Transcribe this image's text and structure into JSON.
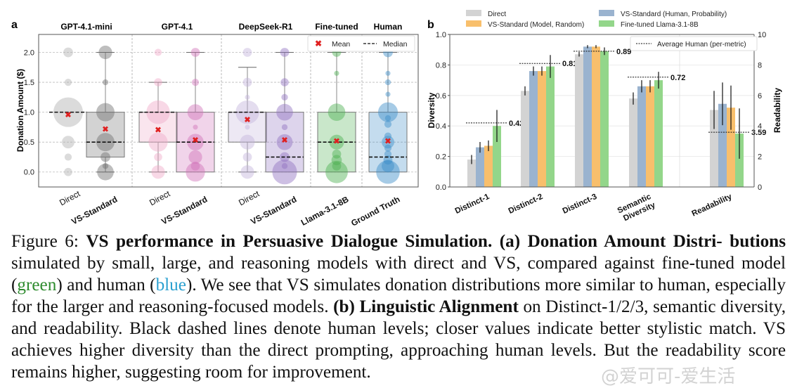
{
  "figure": {
    "caption_parts": {
      "label": "Figure 6: ",
      "title": "VS performance in Persuasive Dialogue Simulation.",
      "a_head": " (a) Donation Amount Distri- butions",
      "a_body_1": " simulated by small, large, and reasoning models with direct and VS, compared against fine-tuned model (",
      "green_word": "green",
      "a_body_2": ") and human (",
      "blue_word": "blue",
      "a_body_3": "). We see that VS simulates donation distributions more similar to human, especially for the larger and reasoning-focused models. ",
      "b_head": "(b) Linguistic Alignment",
      "b_body": " on Distinct-1/2/3, semantic diversity, and readability. Black dashed lines denote human levels; closer values indicate better stylistic match. VS achieves higher diversity than the direct prompting, approaching human levels. But the readability score remains higher, suggesting room for improvement."
    },
    "watermark": "@爱可可-爱生活"
  },
  "chart_data": [
    {
      "panel": "a",
      "type": "box",
      "ylabel": "Donation Amount ($)",
      "ylim": [
        -0.25,
        2.3
      ],
      "yticks": [
        0.0,
        0.5,
        1.0,
        1.5,
        2.0
      ],
      "ytick_labels": [
        "0.0",
        "0.5",
        "1.0",
        "1.5",
        "2.0"
      ],
      "grid": true,
      "legend": {
        "position": "top-right",
        "mean_label": "Mean",
        "median_label": "Median"
      },
      "groups": [
        {
          "title": "GPT-4.1-mini",
          "categories": [
            0,
            1
          ]
        },
        {
          "title": "GPT-4.1",
          "categories": [
            2,
            3
          ]
        },
        {
          "title": "DeepSeek-R1",
          "categories": [
            4,
            5
          ]
        },
        {
          "title": "Fine-tuned",
          "categories": [
            6
          ]
        },
        {
          "title": "Human",
          "categories": [
            7
          ]
        }
      ],
      "categories": [
        {
          "label": "Direct",
          "bold": false,
          "color": "#b0b0b0",
          "q1": 1.0,
          "q3": 1.0,
          "median": 1.0,
          "mean": 0.96,
          "whisker_low": 1.0,
          "whisker_high": 1.0,
          "points": [
            {
              "y": 2.0,
              "w": 0.05
            },
            {
              "y": 1.5,
              "w": 0.02
            },
            {
              "y": 1.0,
              "w": 0.75
            },
            {
              "y": 0.5,
              "w": 0.1
            },
            {
              "y": 0.25,
              "w": 0.02
            },
            {
              "y": 0.0,
              "w": 0.03
            }
          ]
        },
        {
          "label": "VS-Standard",
          "bold": true,
          "color": "#6e6e6e",
          "q1": 0.25,
          "q3": 1.0,
          "median": 0.5,
          "mean": 0.72,
          "whisker_low": 0.0,
          "whisker_high": 2.0,
          "points": [
            {
              "y": 2.0,
              "w": 0.12
            },
            {
              "y": 1.5,
              "w": 0.01
            },
            {
              "y": 1.0,
              "w": 0.25
            },
            {
              "y": 0.5,
              "w": 0.25
            },
            {
              "y": 0.25,
              "w": 0.05
            },
            {
              "y": 0.1,
              "w": 0.01
            },
            {
              "y": 0.0,
              "w": 0.2
            }
          ]
        },
        {
          "label": "Direct",
          "bold": false,
          "color": "#f0a8c8",
          "q1": 0.5,
          "q3": 1.0,
          "median": 1.0,
          "mean": 0.71,
          "whisker_low": 0.0,
          "whisker_high": 1.5,
          "points": [
            {
              "y": 2.0,
              "w": 0.02
            },
            {
              "y": 1.5,
              "w": 0.03
            },
            {
              "y": 1.0,
              "w": 0.45
            },
            {
              "y": 0.5,
              "w": 0.28
            },
            {
              "y": 0.25,
              "w": 0.03
            },
            {
              "y": 0.0,
              "w": 0.12
            }
          ]
        },
        {
          "label": "VS-Standard",
          "bold": true,
          "color": "#d070b8",
          "q1": 0.0,
          "q3": 1.0,
          "median": 0.5,
          "mean": 0.54,
          "whisker_low": 0.0,
          "whisker_high": 2.0,
          "points": [
            {
              "y": 2.0,
              "w": 0.04
            },
            {
              "y": 1.5,
              "w": 0.02
            },
            {
              "y": 1.0,
              "w": 0.18
            },
            {
              "y": 0.75,
              "w": 0.005
            },
            {
              "y": 0.5,
              "w": 0.2
            },
            {
              "y": 0.25,
              "w": 0.12
            },
            {
              "y": 0.1,
              "w": 0.04
            },
            {
              "y": 0.0,
              "w": 0.28
            }
          ]
        },
        {
          "label": "Direct",
          "bold": false,
          "color": "#c4b4dc",
          "q1": 0.5,
          "q3": 1.0,
          "median": 1.0,
          "mean": 0.88,
          "whisker_low": 0.0,
          "whisker_high": 1.75,
          "points": [
            {
              "y": 2.0,
              "w": 0.04
            },
            {
              "y": 1.5,
              "w": 0.04
            },
            {
              "y": 1.25,
              "w": 0.005
            },
            {
              "y": 1.0,
              "w": 0.45
            },
            {
              "y": 0.75,
              "w": 0.005
            },
            {
              "y": 0.5,
              "w": 0.15
            },
            {
              "y": 0.25,
              "w": 0.04
            },
            {
              "y": 0.0,
              "w": 0.12
            }
          ]
        },
        {
          "label": "VS-Standard",
          "bold": true,
          "color": "#9070c0",
          "q1": 0.0,
          "q3": 1.0,
          "median": 0.25,
          "mean": 0.54,
          "whisker_low": 0.0,
          "whisker_high": 2.0,
          "points": [
            {
              "y": 2.0,
              "w": 0.04
            },
            {
              "y": 1.5,
              "w": 0.03
            },
            {
              "y": 1.25,
              "w": 0.015
            },
            {
              "y": 1.0,
              "w": 0.2
            },
            {
              "y": 0.75,
              "w": 0.01
            },
            {
              "y": 0.5,
              "w": 0.18
            },
            {
              "y": 0.25,
              "w": 0.05
            },
            {
              "y": 0.1,
              "w": 0.01
            },
            {
              "y": 0.0,
              "w": 0.5
            }
          ]
        },
        {
          "label": "Llama-3.1-8B",
          "bold": true,
          "color": "#4caf50",
          "q1": 0.0,
          "q3": 1.0,
          "median": 0.5,
          "mean": 0.52,
          "whisker_low": 0.0,
          "whisker_high": 2.0,
          "points": [
            {
              "y": 2.0,
              "w": 0.04
            },
            {
              "y": 1.65,
              "w": 0.005
            },
            {
              "y": 1.0,
              "w": 0.22
            },
            {
              "y": 0.5,
              "w": 0.15
            },
            {
              "y": 0.3,
              "w": 0.04
            },
            {
              "y": 0.2,
              "w": 0.06
            },
            {
              "y": 0.1,
              "w": 0.04
            },
            {
              "y": 0.0,
              "w": 0.4
            }
          ]
        },
        {
          "label": "Ground Truth",
          "bold": true,
          "color": "#3a8cc8",
          "q1": 0.0,
          "q3": 1.0,
          "median": 0.25,
          "mean": 0.52,
          "whisker_low": 0.0,
          "whisker_high": 2.0,
          "points": [
            {
              "y": 2.0,
              "w": 0.05
            },
            {
              "y": 1.65,
              "w": 0.005
            },
            {
              "y": 1.5,
              "w": 0.01
            },
            {
              "y": 1.3,
              "w": 0.005
            },
            {
              "y": 1.0,
              "w": 0.3
            },
            {
              "y": 0.9,
              "w": 0.01
            },
            {
              "y": 0.8,
              "w": 0.02
            },
            {
              "y": 0.6,
              "w": 0.02
            },
            {
              "y": 0.5,
              "w": 0.1
            },
            {
              "y": 0.4,
              "w": 0.02
            },
            {
              "y": 0.3,
              "w": 0.02
            },
            {
              "y": 0.2,
              "w": 0.04
            },
            {
              "y": 0.1,
              "w": 0.1
            },
            {
              "y": 0.0,
              "w": 0.45
            }
          ]
        }
      ]
    },
    {
      "panel": "b",
      "type": "bar",
      "ylabel_left": "Diversity",
      "ylabel_right": "Readability",
      "ylim_left": [
        0,
        1.0
      ],
      "ylim_right": [
        0,
        10
      ],
      "yticks_left": [
        "0.0",
        "0.2",
        "0.4",
        "0.6",
        "0.8",
        "1.0"
      ],
      "yticks_right": [
        "0",
        "2",
        "4",
        "6",
        "8",
        "10"
      ],
      "grid": true,
      "legend": {
        "position": "top",
        "reference_position": "top-right",
        "reference_label": "Average Human (per-metric)"
      },
      "series": [
        {
          "name": "Direct",
          "color": "#d3d3d3"
        },
        {
          "name": "VS-Standard (Human, Probability)",
          "color": "#9ab3cf"
        },
        {
          "name": "VS-Standard (Model, Random)",
          "color": "#f8bf6c"
        },
        {
          "name": "Fine-tuned Llama-3.1-8B",
          "color": "#93d68a"
        }
      ],
      "legend_order": [
        0,
        2,
        1,
        3
      ],
      "categories": [
        {
          "label": "Distinct-1",
          "axis": "left",
          "human": 0.42,
          "human_label": "0.42",
          "values": [
            0.18,
            0.26,
            0.27,
            0.4
          ],
          "errors": [
            0.03,
            0.035,
            0.035,
            0.105
          ]
        },
        {
          "label": "Distinct-2",
          "axis": "left",
          "human": 0.81,
          "human_label": "0.81",
          "values": [
            0.63,
            0.76,
            0.76,
            0.79
          ],
          "errors": [
            0.03,
            0.03,
            0.03,
            0.075
          ]
        },
        {
          "label": "Distinct-3",
          "axis": "left",
          "human": 0.89,
          "human_label": "0.89",
          "values": [
            0.87,
            0.92,
            0.92,
            0.89
          ],
          "errors": [
            0.015,
            0.01,
            0.01,
            0.025
          ]
        },
        {
          "label": "Semantic Diversity",
          "label_lines": [
            "Semantic",
            "Diversity"
          ],
          "axis": "left",
          "human": 0.72,
          "human_label": "0.72",
          "values": [
            0.58,
            0.66,
            0.66,
            0.7
          ],
          "errors": [
            0.04,
            0.04,
            0.04,
            0.055
          ]
        },
        {
          "label": "Readability",
          "axis": "right",
          "human": 3.59,
          "human_label": "3.59",
          "values": [
            5.05,
            5.45,
            5.2,
            3.5
          ],
          "errors": [
            1.25,
            1.4,
            1.45,
            1.65
          ]
        }
      ]
    }
  ]
}
